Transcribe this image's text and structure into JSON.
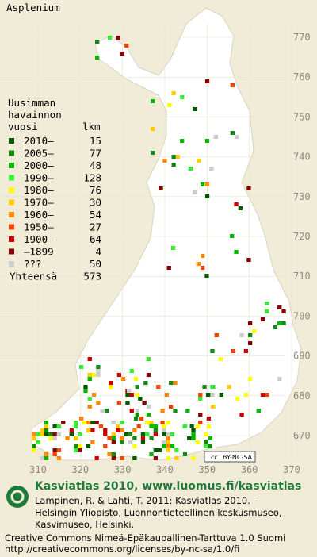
{
  "title": "Asplenium",
  "legend": {
    "heading": [
      "Uusimman",
      "havainnon",
      "vuosi"
    ],
    "count_heading": "lkm",
    "rows": [
      {
        "label": "2010–",
        "count": 15,
        "color": "#005a00"
      },
      {
        "label": "2005–",
        "count": 77,
        "color": "#138a13"
      },
      {
        "label": "2000–",
        "count": 48,
        "color": "#00b800"
      },
      {
        "label": "1990–",
        "count": 128,
        "color": "#33ee33"
      },
      {
        "label": "1980–",
        "count": 76,
        "color": "#ffff00"
      },
      {
        "label": "1970–",
        "count": 30,
        "color": "#ffcc00"
      },
      {
        "label": "1960–",
        "count": 54,
        "color": "#ff8800"
      },
      {
        "label": "1950–",
        "count": 27,
        "color": "#ee4400"
      },
      {
        "label": "1900–",
        "count": 64,
        "color": "#cc0000"
      },
      {
        "label": "–1899",
        "count": 4,
        "color": "#880000"
      },
      {
        "label": "???",
        "count": 50,
        "color": "#cccccc"
      }
    ],
    "total_label": "Yhteensä",
    "total": 573
  },
  "grid": {
    "y_labels": [
      770,
      760,
      750,
      740,
      730,
      720,
      710,
      700,
      690,
      680,
      670
    ],
    "x_labels": [
      310,
      320,
      330,
      340,
      350,
      360,
      370
    ]
  },
  "license_badge": [
    "cc",
    "BY-NC-SA"
  ],
  "footer": {
    "brand": "Kasviatlas 2010, www.luomus.fi/kasviatlas",
    "citation": [
      "Lampinen, R. & Lahti, T. 2011: Kasviatlas 2010. –",
      "Helsingin Yliopisto, Luonnontieteellinen keskusmuseo,",
      "Kasvimuseo, Helsinki."
    ],
    "license": [
      "Creative Commons Nimeä-Epäkaupallinen-Tarttuva 1.0 Suomi",
      "http://creativecommons.org/licenses/by-nc-sa/1.0/fi"
    ]
  }
}
